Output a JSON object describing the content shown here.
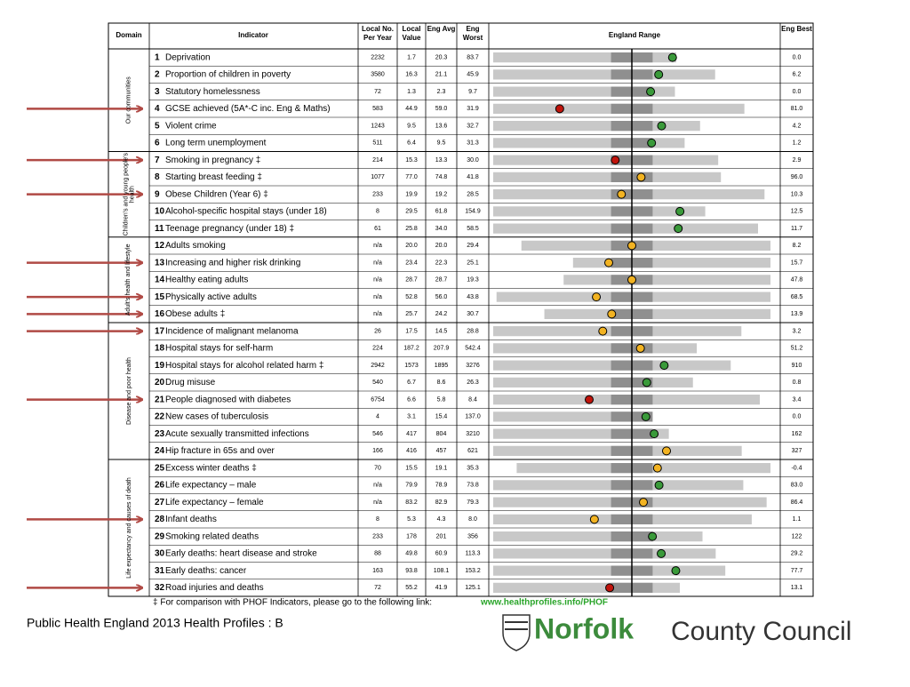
{
  "table": {
    "headers": {
      "domain": "Domain",
      "indicator": "Indicator",
      "local_no": "Local No. Per Year",
      "local_value": "Local Value",
      "eng_avg": "Eng Avg",
      "eng_worst": "Eng Worst",
      "range": "England Range",
      "eng_best": "Eng Best"
    },
    "groups": [
      {
        "domain": "Our communities",
        "rows": [
          {
            "number": 1,
            "indicator": "Deprivation",
            "local_no": "2232",
            "local_value": "1.7",
            "eng_avg": "20.3",
            "eng_worst": "83.7",
            "eng_best": "0.0",
            "color": "#3a9a3a"
          },
          {
            "number": 2,
            "indicator": "Proportion of children in poverty",
            "local_no": "3580",
            "local_value": "16.3",
            "eng_avg": "21.1",
            "eng_worst": "45.9",
            "eng_best": "6.2",
            "color": "#3a9a3a"
          },
          {
            "number": 3,
            "indicator": "Statutory homelessness",
            "local_no": "72",
            "local_value": "1.3",
            "eng_avg": "2.3",
            "eng_worst": "9.7",
            "eng_best": "0.0",
            "color": "#3a9a3a"
          },
          {
            "number": 4,
            "indicator": "GCSE achieved (5A*-C inc. Eng & Maths)",
            "local_no": "583",
            "local_value": "44.9",
            "eng_avg": "59.0",
            "eng_worst": "31.9",
            "eng_best": "81.0",
            "color": "#c0140c",
            "arrow": true
          },
          {
            "number": 5,
            "indicator": "Violent crime",
            "local_no": "1243",
            "local_value": "9.5",
            "eng_avg": "13.6",
            "eng_worst": "32.7",
            "eng_best": "4.2",
            "color": "#3a9a3a"
          },
          {
            "number": 6,
            "indicator": "Long term unemployment",
            "local_no": "511",
            "local_value": "6.4",
            "eng_avg": "9.5",
            "eng_worst": "31.3",
            "eng_best": "1.2",
            "color": "#3a9a3a"
          }
        ]
      },
      {
        "domain": "Children's and young people's health",
        "rows": [
          {
            "number": 7,
            "indicator": "Smoking in pregnancy ‡",
            "local_no": "214",
            "local_value": "15.3",
            "eng_avg": "13.3",
            "eng_worst": "30.0",
            "eng_best": "2.9",
            "color": "#c0140c",
            "arrow": true
          },
          {
            "number": 8,
            "indicator": "Starting breast feeding ‡",
            "local_no": "1077",
            "local_value": "77.0",
            "eng_avg": "74.8",
            "eng_worst": "41.8",
            "eng_best": "96.0",
            "color": "#f2b322"
          },
          {
            "number": 9,
            "indicator": "Obese Children (Year 6) ‡",
            "local_no": "233",
            "local_value": "19.9",
            "eng_avg": "19.2",
            "eng_worst": "28.5",
            "eng_best": "10.3",
            "color": "#f2b322",
            "arrow": true
          },
          {
            "number": 10,
            "indicator": "Alcohol-specific hospital stays (under 18)",
            "local_no": "8",
            "local_value": "29.5",
            "eng_avg": "61.8",
            "eng_worst": "154.9",
            "eng_best": "12.5",
            "color": "#3a9a3a"
          },
          {
            "number": 11,
            "indicator": "Teenage pregnancy (under 18) ‡",
            "local_no": "61",
            "local_value": "25.8",
            "eng_avg": "34.0",
            "eng_worst": "58.5",
            "eng_best": "11.7",
            "color": "#3a9a3a"
          }
        ]
      },
      {
        "domain": "Adult's health and lifestyle",
        "rows": [
          {
            "number": 12,
            "indicator": "Adults smoking",
            "local_no": "n/a",
            "local_value": "20.0",
            "eng_avg": "20.0",
            "eng_worst": "29.4",
            "eng_best": "8.2",
            "color": "#f2b322"
          },
          {
            "number": 13,
            "indicator": "Increasing and higher risk drinking",
            "local_no": "n/a",
            "local_value": "23.4",
            "eng_avg": "22.3",
            "eng_worst": "25.1",
            "eng_best": "15.7",
            "color": "#f2b322",
            "arrow": true
          },
          {
            "number": 14,
            "indicator": "Healthy eating adults",
            "local_no": "n/a",
            "local_value": "28.7",
            "eng_avg": "28.7",
            "eng_worst": "19.3",
            "eng_best": "47.8",
            "color": "#f2b322"
          },
          {
            "number": 15,
            "indicator": "Physically active adults",
            "local_no": "n/a",
            "local_value": "52.8",
            "eng_avg": "56.0",
            "eng_worst": "43.8",
            "eng_best": "68.5",
            "color": "#f2b322",
            "arrow": true
          },
          {
            "number": 16,
            "indicator": "Obese adults ‡",
            "local_no": "n/a",
            "local_value": "25.7",
            "eng_avg": "24.2",
            "eng_worst": "30.7",
            "eng_best": "13.9",
            "color": "#f2b322",
            "arrow": true
          }
        ]
      },
      {
        "domain": "Disease and poor health",
        "rows": [
          {
            "number": 17,
            "indicator": "Incidence of malignant melanoma",
            "local_no": "26",
            "local_value": "17.5",
            "eng_avg": "14.5",
            "eng_worst": "28.8",
            "eng_best": "3.2",
            "color": "#f2b322",
            "arrow": true
          },
          {
            "number": 18,
            "indicator": "Hospital stays for self-harm",
            "local_no": "224",
            "local_value": "187.2",
            "eng_avg": "207.9",
            "eng_worst": "542.4",
            "eng_best": "51.2",
            "color": "#f2b322"
          },
          {
            "number": 19,
            "indicator": "Hospital stays for alcohol related harm ‡",
            "local_no": "2942",
            "local_value": "1573",
            "eng_avg": "1895",
            "eng_worst": "3276",
            "eng_best": "910",
            "color": "#3a9a3a"
          },
          {
            "number": 20,
            "indicator": "Drug misuse",
            "local_no": "540",
            "local_value": "6.7",
            "eng_avg": "8.6",
            "eng_worst": "26.3",
            "eng_best": "0.8",
            "color": "#3a9a3a"
          },
          {
            "number": 21,
            "indicator": "People diagnosed with diabetes",
            "local_no": "6754",
            "local_value": "6.6",
            "eng_avg": "5.8",
            "eng_worst": "8.4",
            "eng_best": "3.4",
            "color": "#c0140c",
            "arrow": true
          },
          {
            "number": 22,
            "indicator": "New cases of tuberculosis",
            "local_no": "4",
            "local_value": "3.1",
            "eng_avg": "15.4",
            "eng_worst": "137.0",
            "eng_best": "0.0",
            "color": "#3a9a3a"
          },
          {
            "number": 23,
            "indicator": "Acute sexually transmitted infections",
            "local_no": "546",
            "local_value": "417",
            "eng_avg": "804",
            "eng_worst": "3210",
            "eng_best": "162",
            "color": "#3a9a3a"
          },
          {
            "number": 24,
            "indicator": "Hip fracture in 65s and over",
            "local_no": "166",
            "local_value": "416",
            "eng_avg": "457",
            "eng_worst": "621",
            "eng_best": "327",
            "color": "#f2b322"
          }
        ]
      },
      {
        "domain": "Life expectancy and causes of death",
        "rows": [
          {
            "number": 25,
            "indicator": "Excess winter deaths ‡",
            "local_no": "70",
            "local_value": "15.5",
            "eng_avg": "19.1",
            "eng_worst": "35.3",
            "eng_best": "-0.4",
            "color": "#f2b322"
          },
          {
            "number": 26,
            "indicator": "Life expectancy – male",
            "local_no": "n/a",
            "local_value": "79.9",
            "eng_avg": "78.9",
            "eng_worst": "73.8",
            "eng_best": "83.0",
            "color": "#3a9a3a"
          },
          {
            "number": 27,
            "indicator": "Life expectancy – female",
            "local_no": "n/a",
            "local_value": "83.2",
            "eng_avg": "82.9",
            "eng_worst": "79.3",
            "eng_best": "86.4",
            "color": "#f2b322"
          },
          {
            "number": 28,
            "indicator": "Infant deaths",
            "local_no": "8",
            "local_value": "5.3",
            "eng_avg": "4.3",
            "eng_worst": "8.0",
            "eng_best": "1.1",
            "color": "#f2b322",
            "arrow": true
          },
          {
            "number": 29,
            "indicator": "Smoking related deaths",
            "local_no": "233",
            "local_value": "178",
            "eng_avg": "201",
            "eng_worst": "356",
            "eng_best": "122",
            "color": "#3a9a3a"
          },
          {
            "number": 30,
            "indicator": "Early deaths: heart disease and stroke",
            "local_no": "88",
            "local_value": "49.8",
            "eng_avg": "60.9",
            "eng_worst": "113.3",
            "eng_best": "29.2",
            "color": "#3a9a3a"
          },
          {
            "number": 31,
            "indicator": "Early deaths: cancer",
            "local_no": "163",
            "local_value": "93.8",
            "eng_avg": "108.1",
            "eng_worst": "153.2",
            "eng_best": "77.7",
            "color": "#3a9a3a"
          },
          {
            "number": 32,
            "indicator": "Road injuries and deaths",
            "local_no": "72",
            "local_value": "55.2",
            "eng_avg": "41.9",
            "eng_worst": "125.1",
            "eng_best": "13.1",
            "color": "#c0140c",
            "arrow": true
          }
        ]
      }
    ]
  },
  "footnote": {
    "text": "‡ For comparison with PHOF Indicators, please go to the following link:",
    "link": "www.healthprofiles.info/PHOF"
  },
  "caption": "Public Health England 2013 Health Profiles : B",
  "logo": {
    "name": "Norfolk",
    "suffix": "County Council"
  }
}
